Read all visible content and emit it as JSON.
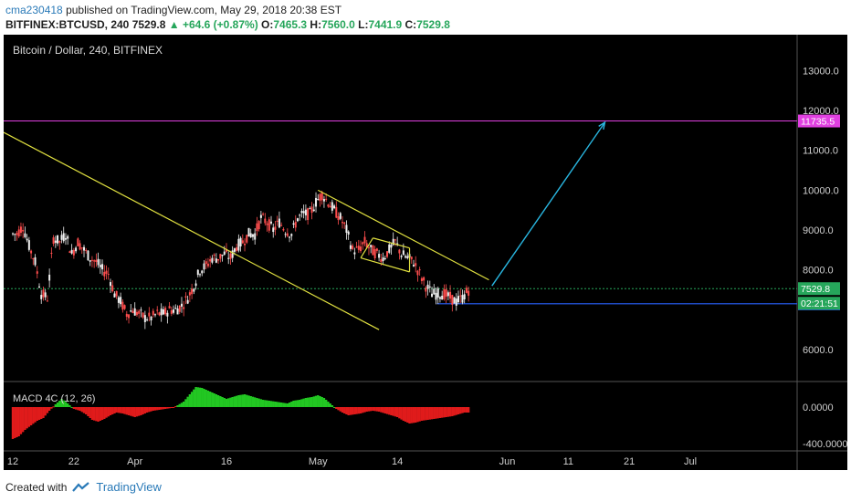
{
  "header": {
    "author": "cma230418",
    "published_text": "published on TradingView.com, May 29, 2018 20:38 EST"
  },
  "ticker": {
    "symbol": "BITFINEX:BTCUSD, 240",
    "last": "7529.8",
    "change": "▲ +64.6 (+0.87%)",
    "o_label": "O:",
    "o": "7465.3",
    "h_label": "H:",
    "h": "7560.0",
    "l_label": "L:",
    "l": "7441.9",
    "c_label": "C:",
    "c": "7529.8"
  },
  "footer": {
    "created_with": "Created with",
    "brand": "TradingView"
  },
  "chart_data": {
    "type": "candlestick",
    "title": "Bitcoin / Dollar, 240, BITFINEX",
    "price_axis": {
      "ticks": [
        "13000.0",
        "12000.0",
        "11000.0",
        "10000.0",
        "9000.0",
        "8000.0",
        "6000.0"
      ],
      "tick_values": [
        13000,
        12000,
        11000,
        10000,
        9000,
        8000,
        6000
      ],
      "ylim": [
        5200,
        13900
      ]
    },
    "time_axis": {
      "labels": [
        "12",
        "22",
        "Apr",
        "16",
        "May",
        "14",
        "Jun",
        "11",
        "21",
        "Jul"
      ],
      "label_days": [
        0,
        10,
        20,
        35,
        50,
        63,
        81,
        91,
        101,
        111
      ],
      "xlim": [
        -1.5,
        128.5
      ]
    },
    "close_series_daily": [
      8900,
      9100,
      8600,
      8200,
      7400,
      7300,
      8800,
      8700,
      8900,
      8400,
      8700,
      8500,
      8300,
      8200,
      8000,
      7900,
      7400,
      7200,
      6900,
      7000,
      6900,
      6800,
      6800,
      6900,
      6900,
      7000,
      7000,
      7100,
      7300,
      7600,
      8000,
      8100,
      8300,
      8300,
      8400,
      8300,
      8600,
      8700,
      8900,
      8900,
      9300,
      9200,
      9000,
      9200,
      9000,
      8900,
      9300,
      9400,
      9400,
      9700,
      9900,
      9700,
      9500,
      9300,
      9000,
      8500,
      8500,
      8700,
      8500,
      8400,
      8300,
      8500,
      8700,
      8400,
      8300,
      8200,
      7900,
      7600,
      7400,
      7400,
      7400,
      7300,
      7200,
      7300,
      7500
    ],
    "close_series_start_day": 0,
    "lines": [
      {
        "name": "resistance-11735",
        "value": 11735.5,
        "label": "11735.5",
        "color": "#e040e0"
      },
      {
        "name": "support-7150",
        "value": 7150,
        "label": "7150.0",
        "color": "#2962ff"
      },
      {
        "name": "last-price",
        "value": 7529.8,
        "label": "7529.8",
        "color": "#26a65b"
      }
    ],
    "countdown_label": "02:21:51",
    "trendlines": [
      {
        "from": [
          -1.5,
          11450
        ],
        "to": [
          60,
          6500
        ],
        "color": "#e0e040"
      },
      {
        "from": [
          50,
          10000
        ],
        "to": [
          78,
          7750
        ],
        "color": "#e0e040"
      },
      {
        "from": [
          57,
          8300
        ],
        "to": [
          65,
          7950
        ],
        "color": "#e0e040"
      },
      {
        "from": [
          59,
          8800
        ],
        "to": [
          65,
          8550
        ],
        "color": "#e0e040"
      }
    ],
    "projection_arrow": {
      "from": [
        78.5,
        7600
      ],
      "to": [
        97,
        11700
      ],
      "color": "#29b6e0"
    },
    "support_segment": {
      "from": [
        69.5,
        7150
      ],
      "to": [
        128.5,
        7150
      ]
    },
    "macd": {
      "label": "MACD 4C (12, 26)",
      "ticks": [
        "0.0000",
        "-400.0000"
      ],
      "tick_values": [
        0,
        -400
      ],
      "ylim": [
        -480,
        250
      ],
      "values": [
        -350,
        -320,
        -250,
        -200,
        -150,
        -120,
        -40,
        30,
        90,
        40,
        -20,
        -40,
        -80,
        -140,
        -160,
        -130,
        -90,
        -60,
        -70,
        -90,
        -110,
        -90,
        -60,
        -40,
        -30,
        -20,
        -10,
        20,
        60,
        140,
        220,
        210,
        180,
        150,
        120,
        90,
        110,
        130,
        140,
        120,
        100,
        80,
        70,
        60,
        50,
        40,
        70,
        80,
        100,
        110,
        130,
        100,
        40,
        -20,
        -60,
        -90,
        -80,
        -70,
        -50,
        -40,
        -50,
        -70,
        -90,
        -110,
        -150,
        -180,
        -170,
        -150,
        -140,
        -130,
        -120,
        -110,
        -100,
        -80,
        -60
      ]
    }
  }
}
